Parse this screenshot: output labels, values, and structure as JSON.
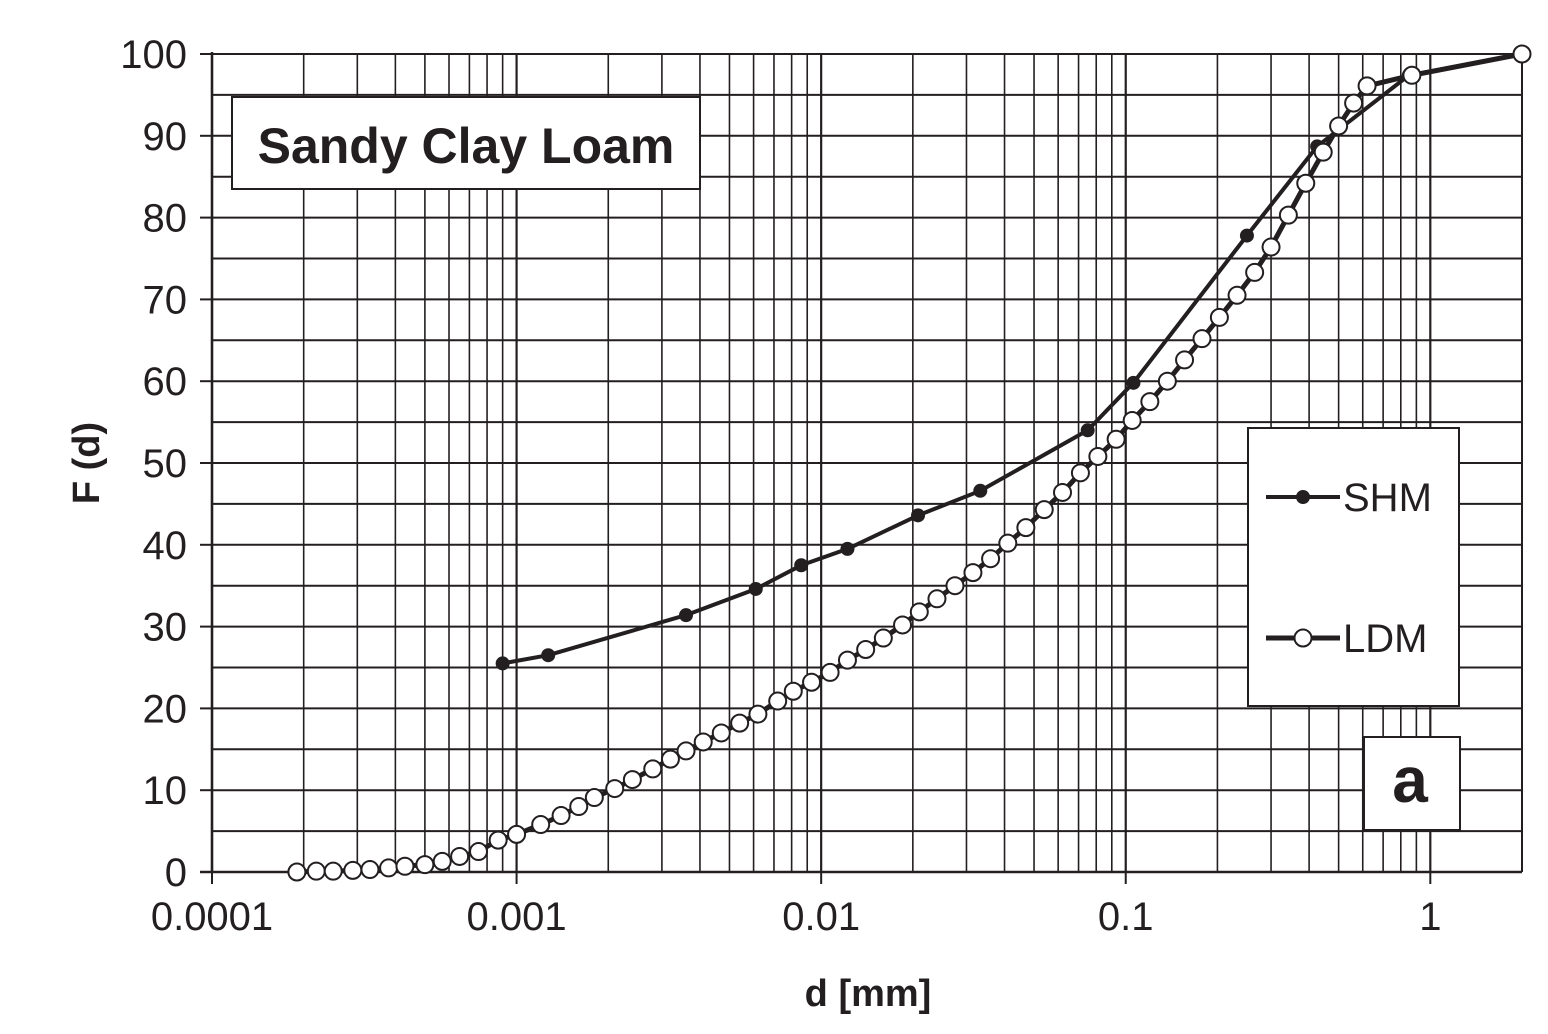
{
  "chart_data": {
    "type": "line",
    "title": "Sandy Clay Loam",
    "panel_label": "a",
    "xlabel": "d [mm]",
    "ylabel": "F (d)",
    "x_scale": "log",
    "xlim": [
      0.0001,
      2
    ],
    "ylim": [
      0,
      100
    ],
    "x_ticks": [
      {
        "value": 0.0001,
        "label": "0.0001"
      },
      {
        "value": 0.001,
        "label": "0.001"
      },
      {
        "value": 0.01,
        "label": "0.01"
      },
      {
        "value": 0.1,
        "label": "0.1"
      },
      {
        "value": 1,
        "label": "1"
      }
    ],
    "y_ticks": [
      {
        "value": 0,
        "label": "0"
      },
      {
        "value": 10,
        "label": "10"
      },
      {
        "value": 20,
        "label": "20"
      },
      {
        "value": 30,
        "label": "30"
      },
      {
        "value": 40,
        "label": "40"
      },
      {
        "value": 50,
        "label": "50"
      },
      {
        "value": 60,
        "label": "60"
      },
      {
        "value": 70,
        "label": "70"
      },
      {
        "value": 80,
        "label": "80"
      },
      {
        "value": 90,
        "label": "90"
      },
      {
        "value": 100,
        "label": "100"
      }
    ],
    "grid": true,
    "legend_position": "right",
    "series": [
      {
        "name": "SHM",
        "marker": "filled-circle",
        "color": "#231f20",
        "points": [
          [
            0.0009,
            25.5
          ],
          [
            0.00127,
            26.5
          ],
          [
            0.0036,
            31.4
          ],
          [
            0.0061,
            34.6
          ],
          [
            0.0086,
            37.5
          ],
          [
            0.0122,
            39.5
          ],
          [
            0.0208,
            43.6
          ],
          [
            0.0333,
            46.6
          ],
          [
            0.075,
            54.0
          ],
          [
            0.106,
            59.8
          ],
          [
            0.25,
            77.8
          ],
          [
            0.425,
            88.7
          ],
          [
            0.85,
            97.4
          ],
          [
            2.0,
            100.0
          ]
        ]
      },
      {
        "name": "LDM",
        "marker": "open-circle",
        "color": "#231f20",
        "points": [
          [
            0.00019,
            0.0
          ],
          [
            0.00022,
            0.1
          ],
          [
            0.00025,
            0.1
          ],
          [
            0.00029,
            0.2
          ],
          [
            0.00033,
            0.3
          ],
          [
            0.00038,
            0.5
          ],
          [
            0.00043,
            0.7
          ],
          [
            0.0005,
            0.9
          ],
          [
            0.00057,
            1.3
          ],
          [
            0.00065,
            1.9
          ],
          [
            0.00075,
            2.5
          ],
          [
            0.00087,
            3.9
          ],
          [
            0.001,
            4.6
          ],
          [
            0.0012,
            5.8
          ],
          [
            0.0014,
            6.9
          ],
          [
            0.0016,
            8.0
          ],
          [
            0.0018,
            9.1
          ],
          [
            0.0021,
            10.2
          ],
          [
            0.0024,
            11.3
          ],
          [
            0.0028,
            12.6
          ],
          [
            0.0032,
            13.8
          ],
          [
            0.0036,
            14.8
          ],
          [
            0.0041,
            15.9
          ],
          [
            0.0047,
            17.0
          ],
          [
            0.0054,
            18.2
          ],
          [
            0.0062,
            19.3
          ],
          [
            0.0072,
            20.9
          ],
          [
            0.0081,
            22.1
          ],
          [
            0.0093,
            23.2
          ],
          [
            0.0107,
            24.4
          ],
          [
            0.0122,
            25.9
          ],
          [
            0.014,
            27.2
          ],
          [
            0.016,
            28.6
          ],
          [
            0.0185,
            30.2
          ],
          [
            0.021,
            31.8
          ],
          [
            0.024,
            33.4
          ],
          [
            0.0275,
            35.0
          ],
          [
            0.0315,
            36.6
          ],
          [
            0.036,
            38.3
          ],
          [
            0.041,
            40.2
          ],
          [
            0.047,
            42.1
          ],
          [
            0.054,
            44.3
          ],
          [
            0.062,
            46.4
          ],
          [
            0.071,
            48.8
          ],
          [
            0.081,
            50.8
          ],
          [
            0.093,
            52.9
          ],
          [
            0.105,
            55.2
          ],
          [
            0.12,
            57.5
          ],
          [
            0.137,
            60.0
          ],
          [
            0.156,
            62.6
          ],
          [
            0.178,
            65.2
          ],
          [
            0.203,
            67.8
          ],
          [
            0.232,
            70.5
          ],
          [
            0.265,
            73.3
          ],
          [
            0.3,
            76.4
          ],
          [
            0.342,
            80.3
          ],
          [
            0.39,
            84.2
          ],
          [
            0.445,
            88.0
          ],
          [
            0.5,
            91.2
          ],
          [
            0.56,
            94.0
          ],
          [
            0.62,
            96.1
          ],
          [
            0.87,
            97.4
          ],
          [
            2.0,
            100.0
          ]
        ]
      }
    ]
  }
}
